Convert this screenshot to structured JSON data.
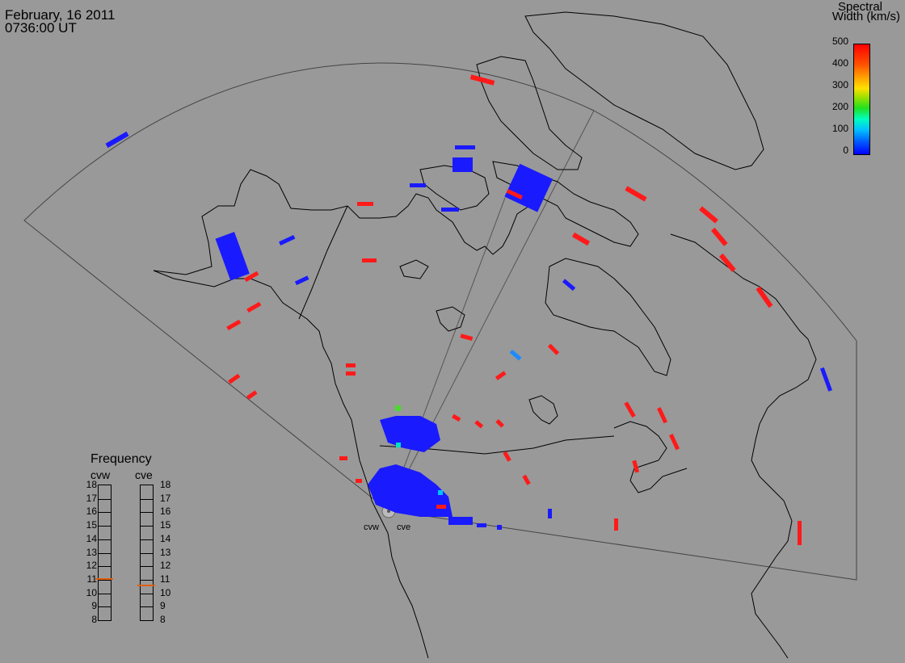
{
  "header": {
    "date": "February, 16 2011",
    "time": "0736:00 UT"
  },
  "scale": {
    "title_line1": "Spectral",
    "title_line2": "Width (km/s)",
    "ticks": [
      "500",
      "400",
      "300",
      "200",
      "100",
      "0"
    ],
    "min": 0,
    "max": 500,
    "colors": [
      "#0000ff",
      "#00c0ff",
      "#20e020",
      "#ffe000",
      "#ff5000",
      "#ff0000"
    ]
  },
  "frequency": {
    "title": "Frequency",
    "radars": [
      {
        "name": "cvw",
        "value": 11.0
      },
      {
        "name": "cve",
        "value": 10.5
      }
    ],
    "ticks": [
      "18",
      "17",
      "16",
      "15",
      "14",
      "13",
      "12",
      "11",
      "10",
      "9",
      "8"
    ],
    "min": 8,
    "max": 18
  },
  "radars": [
    {
      "name": "cvw"
    },
    {
      "name": "cve"
    }
  ],
  "colors": {
    "background": "#999999",
    "land_outline": "#000000",
    "fov_outline": "#333333",
    "low_width": "#1a1aff",
    "high_width": "#ff1a1a"
  }
}
